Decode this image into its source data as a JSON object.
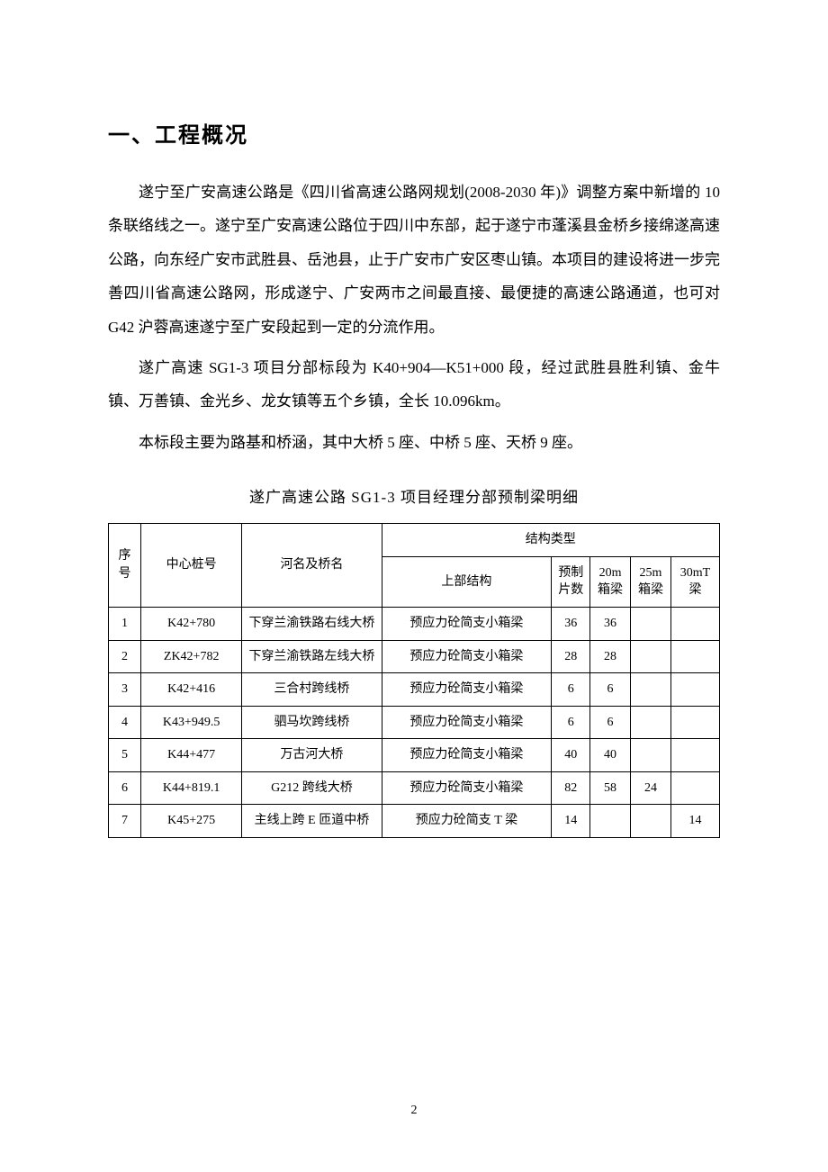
{
  "heading": "一、工程概况",
  "para1": "遂宁至广安高速公路是《四川省高速公路网规划(2008-2030 年)》调整方案中新增的 10 条联络线之一。遂宁至广安高速公路位于四川中东部，起于遂宁市蓬溪县金桥乡接绵遂高速公路，向东经广安市武胜县、岳池县，止于广安市广安区枣山镇。本项目的建设将进一步完善四川省高速公路网，形成遂宁、广安两市之间最直接、最便捷的高速公路通道，也可对 G42 沪蓉高速遂宁至广安段起到一定的分流作用。",
  "para2": "遂广高速 SG1-3 项目分部标段为 K40+904—K51+000 段，经过武胜县胜利镇、金牛镇、万善镇、金光乡、龙女镇等五个乡镇，全长 10.096km。",
  "para3": "本标段主要为路基和桥涵，其中大桥 5 座、中桥 5 座、天桥 9 座。",
  "tableTitle": "遂广高速公路 SG1-3 项目经理分部预制梁明细",
  "headers": {
    "seq": "序号",
    "pile": "中心桩号",
    "bridge": "河名及桥名",
    "structType": "结构类型",
    "upper": "上部结构",
    "count": "预制片数",
    "c20m": "20m箱梁",
    "c25m": "25m箱梁",
    "c30mt": "30mT梁"
  },
  "rows": [
    {
      "seq": "1",
      "pile": "K42+780",
      "bridge": "下穿兰渝铁路右线大桥",
      "upper": "预应力砼简支小箱梁",
      "count": "36",
      "c20m": "36",
      "c25m": "",
      "c30mt": ""
    },
    {
      "seq": "2",
      "pile": "ZK42+782",
      "bridge": "下穿兰渝铁路左线大桥",
      "upper": "预应力砼简支小箱梁",
      "count": "28",
      "c20m": "28",
      "c25m": "",
      "c30mt": ""
    },
    {
      "seq": "3",
      "pile": "K42+416",
      "bridge": "三合村跨线桥",
      "upper": "预应力砼简支小箱梁",
      "count": "6",
      "c20m": "6",
      "c25m": "",
      "c30mt": ""
    },
    {
      "seq": "4",
      "pile": "K43+949.5",
      "bridge": "驷马坎跨线桥",
      "upper": "预应力砼简支小箱梁",
      "count": "6",
      "c20m": "6",
      "c25m": "",
      "c30mt": ""
    },
    {
      "seq": "5",
      "pile": "K44+477",
      "bridge": "万古河大桥",
      "upper": "预应力砼简支小箱梁",
      "count": "40",
      "c20m": "40",
      "c25m": "",
      "c30mt": ""
    },
    {
      "seq": "6",
      "pile": "K44+819.1",
      "bridge": "G212 跨线大桥",
      "upper": "预应力砼简支小箱梁",
      "count": "82",
      "c20m": "58",
      "c25m": "24",
      "c30mt": ""
    },
    {
      "seq": "7",
      "pile": "K45+275",
      "bridge": "主线上跨 E 匝道中桥",
      "upper": "预应力砼简支 T 梁",
      "count": "14",
      "c20m": "",
      "c25m": "",
      "c30mt": "14"
    }
  ],
  "pageNumber": "2",
  "colors": {
    "text": "#000000",
    "background": "#ffffff",
    "border": "#000000"
  },
  "typography": {
    "heading_fontsize": 24,
    "body_fontsize": 17,
    "table_fontsize": 14,
    "line_height": 2.2
  }
}
